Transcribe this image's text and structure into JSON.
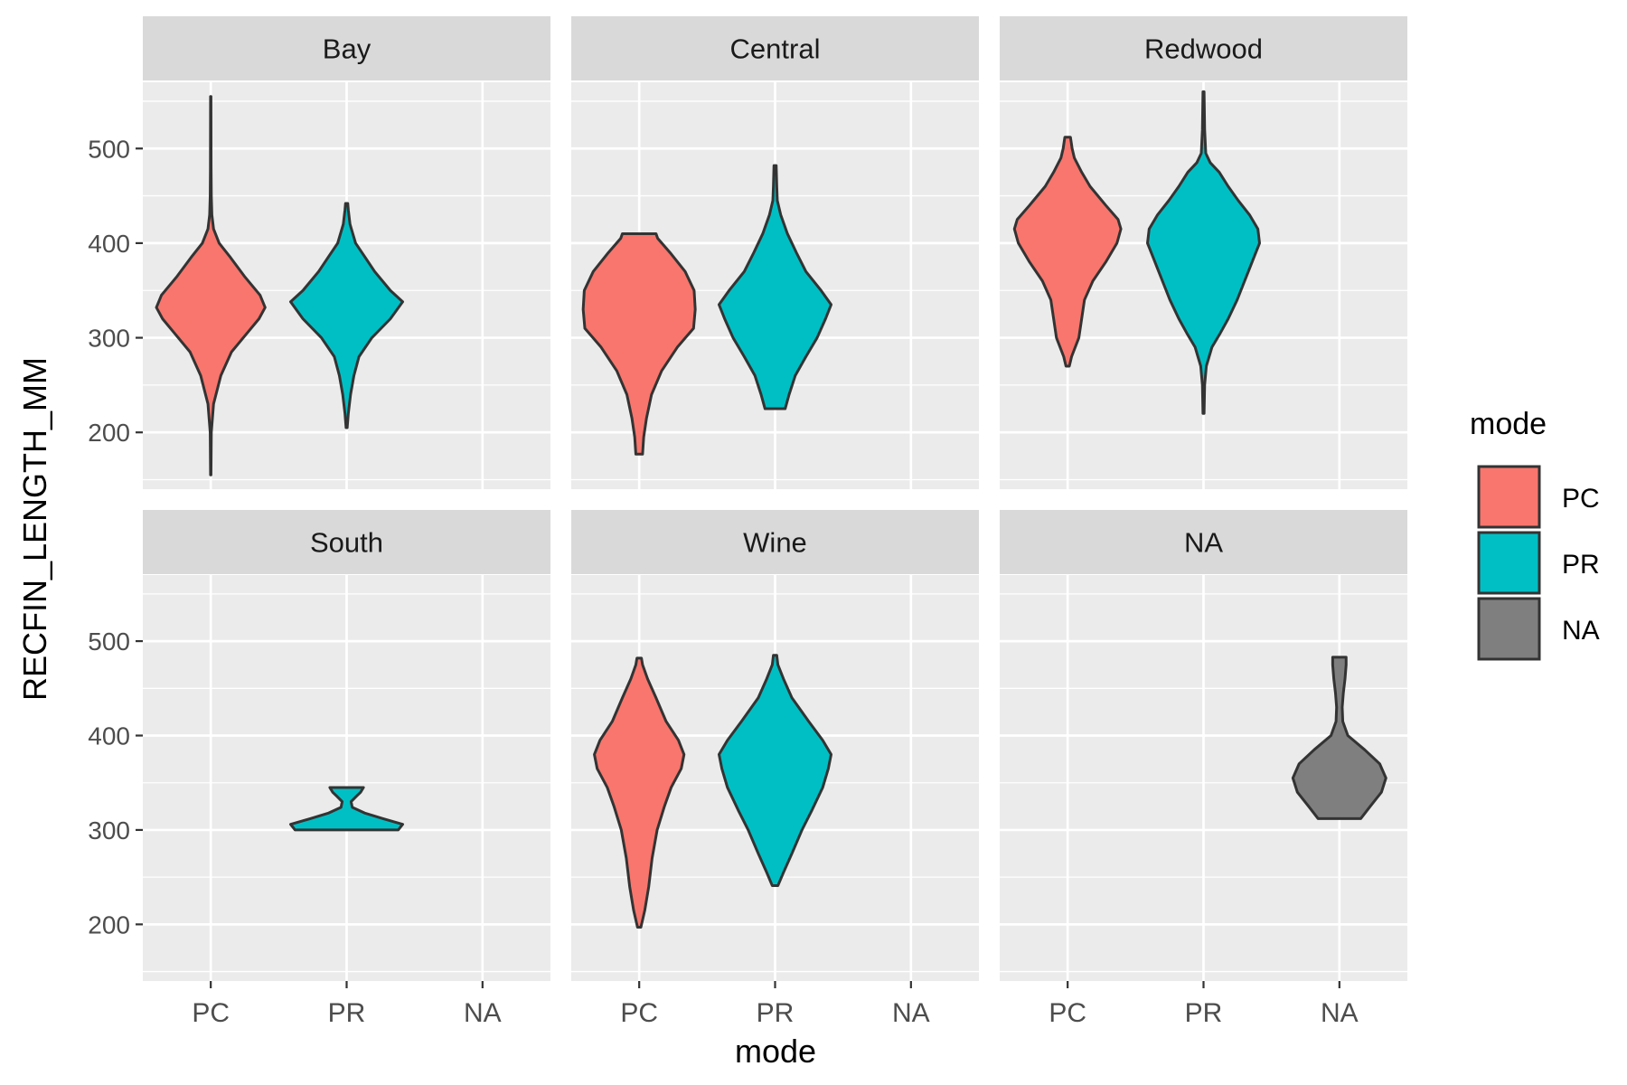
{
  "colors": {
    "panel_bg": "#EBEBEB",
    "strip_bg": "#D9D9D9",
    "grid": "#FFFFFF",
    "outline": "#333333",
    "tick_text": "#4D4D4D",
    "PC": "#F8766D",
    "PR": "#00BFC4",
    "NA": "#7F7F7F"
  },
  "chart_data": {
    "type": "violin",
    "xlabel": "mode",
    "ylabel": "RECFIN_LENGTH_MM",
    "x_categories": [
      "PC",
      "PR",
      "NA"
    ],
    "y_ticks": [
      200,
      300,
      400,
      500
    ],
    "ylim": [
      140,
      570
    ],
    "grid": true,
    "legend": {
      "title": "mode",
      "position": "right",
      "entries": [
        "PC",
        "PR",
        "NA"
      ]
    },
    "panels": [
      {
        "title": "Bay",
        "violins": [
          {
            "mode": "PC",
            "min": 155,
            "max": 555,
            "profile": [
              [
                155,
                0.004
              ],
              [
                200,
                0.01
              ],
              [
                230,
                0.05
              ],
              [
                260,
                0.18
              ],
              [
                285,
                0.37
              ],
              [
                305,
                0.65
              ],
              [
                320,
                0.86
              ],
              [
                332,
                0.97
              ],
              [
                345,
                0.88
              ],
              [
                365,
                0.6
              ],
              [
                385,
                0.35
              ],
              [
                400,
                0.15
              ],
              [
                415,
                0.05
              ],
              [
                430,
                0.02
              ],
              [
                450,
                0.01
              ],
              [
                480,
                0.006
              ],
              [
                555,
                0.004
              ]
            ]
          },
          {
            "mode": "PR",
            "min": 205,
            "max": 442,
            "profile": [
              [
                205,
                0.01
              ],
              [
                220,
                0.03
              ],
              [
                240,
                0.07
              ],
              [
                260,
                0.13
              ],
              [
                280,
                0.22
              ],
              [
                300,
                0.45
              ],
              [
                320,
                0.78
              ],
              [
                338,
                1.0
              ],
              [
                350,
                0.78
              ],
              [
                370,
                0.5
              ],
              [
                385,
                0.33
              ],
              [
                400,
                0.16
              ],
              [
                420,
                0.06
              ],
              [
                435,
                0.03
              ],
              [
                442,
                0.02
              ]
            ]
          }
        ]
      },
      {
        "title": "Central",
        "violins": [
          {
            "mode": "PC",
            "min": 177,
            "max": 410,
            "profile": [
              [
                177,
                0.06
              ],
              [
                195,
                0.08
              ],
              [
                215,
                0.13
              ],
              [
                240,
                0.22
              ],
              [
                265,
                0.4
              ],
              [
                290,
                0.68
              ],
              [
                310,
                0.97
              ],
              [
                330,
                1.0
              ],
              [
                350,
                0.98
              ],
              [
                370,
                0.82
              ],
              [
                390,
                0.55
              ],
              [
                405,
                0.33
              ],
              [
                410,
                0.3
              ]
            ]
          },
          {
            "mode": "PR",
            "min": 225,
            "max": 482,
            "profile": [
              [
                225,
                0.18
              ],
              [
                240,
                0.25
              ],
              [
                260,
                0.36
              ],
              [
                280,
                0.55
              ],
              [
                300,
                0.75
              ],
              [
                320,
                0.9
              ],
              [
                335,
                1.0
              ],
              [
                350,
                0.82
              ],
              [
                370,
                0.55
              ],
              [
                390,
                0.38
              ],
              [
                410,
                0.22
              ],
              [
                430,
                0.1
              ],
              [
                445,
                0.04
              ],
              [
                460,
                0.03
              ],
              [
                482,
                0.02
              ]
            ]
          }
        ]
      },
      {
        "title": "Redwood",
        "violins": [
          {
            "mode": "PC",
            "min": 270,
            "max": 512,
            "profile": [
              [
                270,
                0.03
              ],
              [
                280,
                0.07
              ],
              [
                300,
                0.2
              ],
              [
                320,
                0.25
              ],
              [
                340,
                0.3
              ],
              [
                360,
                0.45
              ],
              [
                380,
                0.68
              ],
              [
                400,
                0.88
              ],
              [
                415,
                0.95
              ],
              [
                425,
                0.9
              ],
              [
                440,
                0.68
              ],
              [
                460,
                0.4
              ],
              [
                475,
                0.25
              ],
              [
                490,
                0.12
              ],
              [
                500,
                0.08
              ],
              [
                512,
                0.05
              ]
            ]
          },
          {
            "mode": "PR",
            "min": 220,
            "max": 560,
            "profile": [
              [
                220,
                0.01
              ],
              [
                250,
                0.02
              ],
              [
                270,
                0.05
              ],
              [
                290,
                0.15
              ],
              [
                305,
                0.3
              ],
              [
                320,
                0.44
              ],
              [
                340,
                0.6
              ],
              [
                355,
                0.7
              ],
              [
                370,
                0.8
              ],
              [
                385,
                0.9
              ],
              [
                400,
                1.0
              ],
              [
                415,
                0.97
              ],
              [
                430,
                0.82
              ],
              [
                445,
                0.62
              ],
              [
                460,
                0.44
              ],
              [
                475,
                0.28
              ],
              [
                485,
                0.12
              ],
              [
                495,
                0.04
              ],
              [
                520,
                0.02
              ],
              [
                560,
                0.01
              ]
            ]
          }
        ]
      },
      {
        "title": "South",
        "violins": [
          {
            "mode": "PR",
            "min": 300,
            "max": 345,
            "profile": [
              [
                300,
                0.92
              ],
              [
                306,
                1.0
              ],
              [
                312,
                0.65
              ],
              [
                318,
                0.32
              ],
              [
                324,
                0.1
              ],
              [
                330,
                0.08
              ],
              [
                336,
                0.18
              ],
              [
                340,
                0.25
              ],
              [
                345,
                0.3
              ]
            ]
          }
        ]
      },
      {
        "title": "Wine",
        "violins": [
          {
            "mode": "PC",
            "min": 197,
            "max": 482,
            "profile": [
              [
                197,
                0.03
              ],
              [
                215,
                0.1
              ],
              [
                240,
                0.17
              ],
              [
                270,
                0.23
              ],
              [
                300,
                0.32
              ],
              [
                325,
                0.45
              ],
              [
                345,
                0.57
              ],
              [
                365,
                0.75
              ],
              [
                380,
                0.8
              ],
              [
                395,
                0.7
              ],
              [
                415,
                0.48
              ],
              [
                440,
                0.3
              ],
              [
                460,
                0.15
              ],
              [
                475,
                0.06
              ],
              [
                482,
                0.04
              ]
            ]
          },
          {
            "mode": "PR",
            "min": 241,
            "max": 485,
            "profile": [
              [
                241,
                0.05
              ],
              [
                255,
                0.15
              ],
              [
                275,
                0.3
              ],
              [
                300,
                0.48
              ],
              [
                320,
                0.65
              ],
              [
                345,
                0.85
              ],
              [
                365,
                0.95
              ],
              [
                380,
                1.0
              ],
              [
                395,
                0.85
              ],
              [
                415,
                0.6
              ],
              [
                440,
                0.3
              ],
              [
                460,
                0.15
              ],
              [
                475,
                0.05
              ],
              [
                485,
                0.03
              ]
            ]
          }
        ]
      },
      {
        "title": "NA",
        "violins": [
          {
            "mode": "NA",
            "min": 312,
            "max": 483,
            "profile": [
              [
                312,
                0.38
              ],
              [
                325,
                0.55
              ],
              [
                340,
                0.75
              ],
              [
                355,
                0.83
              ],
              [
                370,
                0.72
              ],
              [
                385,
                0.45
              ],
              [
                400,
                0.15
              ],
              [
                415,
                0.06
              ],
              [
                430,
                0.05
              ],
              [
                445,
                0.07
              ],
              [
                460,
                0.1
              ],
              [
                475,
                0.12
              ],
              [
                483,
                0.12
              ]
            ]
          }
        ]
      }
    ]
  }
}
